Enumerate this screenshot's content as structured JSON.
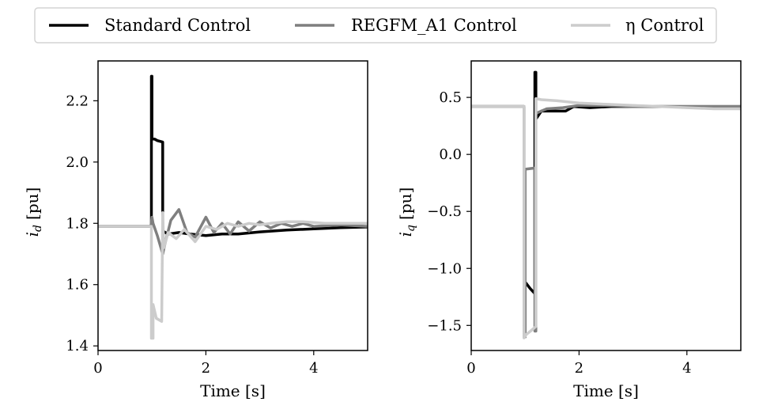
{
  "legend": {
    "entries": [
      {
        "label": "Standard Control",
        "color": "#000000"
      },
      {
        "label": "REGFM_A1 Control",
        "color": "#7f7f7f"
      },
      {
        "label": "η Control",
        "color": "#cccccc"
      }
    ]
  },
  "chart_data": [
    {
      "type": "line",
      "title": "",
      "xlabel": "Time [s]",
      "ylabel": "i_d [pu]",
      "ylabel_symbol": "i",
      "ylabel_sub": "d",
      "ylabel_unit": "[pu]",
      "xlim": [
        0,
        5
      ],
      "ylim": [
        1.385,
        2.33
      ],
      "xticks": [
        0,
        2,
        4
      ],
      "xtick_labels": [
        "0",
        "2",
        "4"
      ],
      "yticks": [
        1.4,
        1.6,
        1.8,
        2.0,
        2.2
      ],
      "ytick_labels": [
        "1.4",
        "1.6",
        "1.8",
        "2.0",
        "2.2"
      ],
      "grid": false,
      "series": [
        {
          "name": "Standard Control",
          "color": "#000000",
          "x": [
            0,
            0.99,
            0.99,
            1.0,
            1.0,
            1.05,
            1.1,
            1.2,
            1.2,
            1.3,
            1.5,
            1.7,
            2.0,
            2.3,
            2.6,
            3.0,
            3.5,
            4.0,
            4.5,
            5.0
          ],
          "y": [
            1.79,
            1.79,
            2.28,
            2.28,
            2.075,
            2.075,
            2.07,
            2.065,
            1.775,
            1.765,
            1.77,
            1.765,
            1.76,
            1.765,
            1.765,
            1.772,
            1.778,
            1.782,
            1.786,
            1.788
          ]
        },
        {
          "name": "REGFM_A1 Control",
          "color": "#7f7f7f",
          "x": [
            0,
            0.98,
            1.0,
            1.02,
            1.1,
            1.2,
            1.25,
            1.35,
            1.5,
            1.65,
            1.8,
            2.0,
            2.15,
            2.3,
            2.45,
            2.6,
            2.8,
            3.0,
            3.2,
            3.4,
            3.6,
            3.8,
            4.0,
            4.5,
            5.0
          ],
          "y": [
            1.79,
            1.79,
            1.82,
            1.8,
            1.76,
            1.7,
            1.74,
            1.81,
            1.845,
            1.77,
            1.755,
            1.82,
            1.77,
            1.8,
            1.765,
            1.805,
            1.775,
            1.805,
            1.785,
            1.8,
            1.79,
            1.8,
            1.79,
            1.795,
            1.79
          ]
        },
        {
          "name": "η Control",
          "color": "#cccccc",
          "x": [
            0,
            0.99,
            0.99,
            1.02,
            1.02,
            1.08,
            1.18,
            1.2,
            1.22,
            1.3,
            1.45,
            1.6,
            1.8,
            2.0,
            2.2,
            2.4,
            2.6,
            2.8,
            3.0,
            3.2,
            3.5,
            3.8,
            4.2,
            4.6,
            5.0
          ],
          "y": [
            1.79,
            1.79,
            1.425,
            1.425,
            1.535,
            1.49,
            1.48,
            1.835,
            1.72,
            1.77,
            1.75,
            1.78,
            1.74,
            1.79,
            1.78,
            1.8,
            1.79,
            1.8,
            1.795,
            1.8,
            1.805,
            1.805,
            1.8,
            1.8,
            1.8
          ]
        }
      ]
    },
    {
      "type": "line",
      "title": "",
      "xlabel": "Time [s]",
      "ylabel": "i_q [pu]",
      "ylabel_symbol": "i",
      "ylabel_sub": "q",
      "ylabel_unit": "[pu]",
      "xlim": [
        0,
        5
      ],
      "ylim": [
        -1.72,
        0.82
      ],
      "xticks": [
        0,
        2,
        4
      ],
      "xtick_labels": [
        "0",
        "2",
        "4"
      ],
      "yticks": [
        -1.5,
        -1.0,
        -0.5,
        0.0,
        0.5
      ],
      "ytick_labels": [
        "−1.5",
        "−1.0",
        "−0.5",
        "0.0",
        "0.5"
      ],
      "grid": false,
      "series": [
        {
          "name": "Standard Control",
          "color": "#000000",
          "x": [
            0,
            0.98,
            0.98,
            1.0,
            1.0,
            1.1,
            1.18,
            1.18,
            1.2,
            1.2,
            1.3,
            1.5,
            1.75,
            1.9,
            2.2,
            2.6,
            3.0,
            4.0,
            5.0
          ],
          "y": [
            0.42,
            0.42,
            -1.6,
            -1.6,
            -1.12,
            -1.18,
            -1.22,
            0.72,
            0.72,
            0.31,
            0.38,
            0.38,
            0.38,
            0.42,
            0.41,
            0.42,
            0.42,
            0.42,
            0.42
          ]
        },
        {
          "name": "REGFM_A1 Control",
          "color": "#7f7f7f",
          "x": [
            0,
            0.98,
            0.98,
            1.0,
            1.0,
            1.18,
            1.18,
            1.2,
            1.2,
            1.4,
            1.7,
            2.0,
            2.5,
            3.0,
            4.0,
            5.0
          ],
          "y": [
            0.42,
            0.42,
            -1.6,
            -1.6,
            -0.13,
            -0.12,
            -1.55,
            -1.55,
            0.36,
            0.4,
            0.41,
            0.43,
            0.43,
            0.42,
            0.42,
            0.42
          ]
        },
        {
          "name": "η Control",
          "color": "#cccccc",
          "x": [
            0,
            0.98,
            0.98,
            1.02,
            1.1,
            1.2,
            1.2,
            1.3,
            1.6,
            2.0,
            2.5,
            3.0,
            3.5,
            4.0,
            4.5,
            5.0
          ],
          "y": [
            0.42,
            0.42,
            -1.61,
            -1.58,
            -1.55,
            -1.51,
            0.49,
            0.48,
            0.47,
            0.45,
            0.44,
            0.43,
            0.42,
            0.41,
            0.4,
            0.4
          ]
        }
      ]
    }
  ]
}
